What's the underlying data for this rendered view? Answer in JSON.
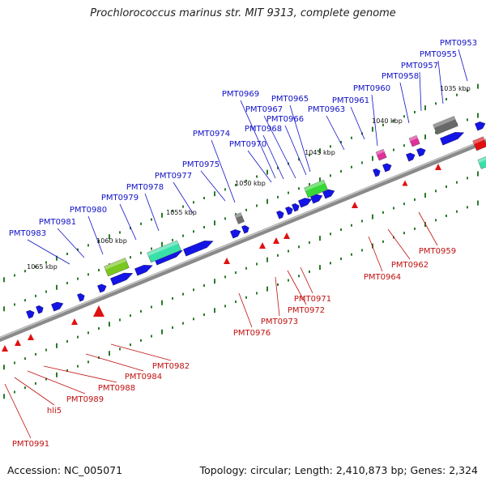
{
  "title": "Prochlorococcus marinus str. MIT 9313, complete genome",
  "accession": "Accession: NC_005071",
  "summary": "Topology: circular; Length: 2,410,873 bp; Genes: 2,324",
  "colors": {
    "forward_label": "#1010c8",
    "reverse_label": "#c01010",
    "backbone": "#8a8a8a",
    "forward_gene": "#1414e6",
    "reverse_gene": "#e01010",
    "tick": "#2a7a2a"
  },
  "kbp_ticks": [
    "1035 kbp",
    "1040 kbp",
    "1045 kbp",
    "1050 kbp",
    "1055 kbp",
    "1060 kbp",
    "1065 kbp"
  ],
  "forward_labels": [
    "PMT0953",
    "PMT0955",
    "PMT0957",
    "PMT0958",
    "PMT0960",
    "PMT0961",
    "PMT0963",
    "PMT0965",
    "PMT0966",
    "PMT0967",
    "PMT0968",
    "PMT0969",
    "PMT0970",
    "PMT0974",
    "PMT0975",
    "PMT0977",
    "PMT0978",
    "PMT0979",
    "PMT0980",
    "PMT0981",
    "PMT0983"
  ],
  "reverse_labels": [
    "PMT0959",
    "PMT0962",
    "PMT0964",
    "PMT0971",
    "PMT0972",
    "PMT0973",
    "PMT0976",
    "PMT0982",
    "PMT0984",
    "PMT0988",
    "PMT0989",
    "hli5",
    "PMT0991"
  ]
}
